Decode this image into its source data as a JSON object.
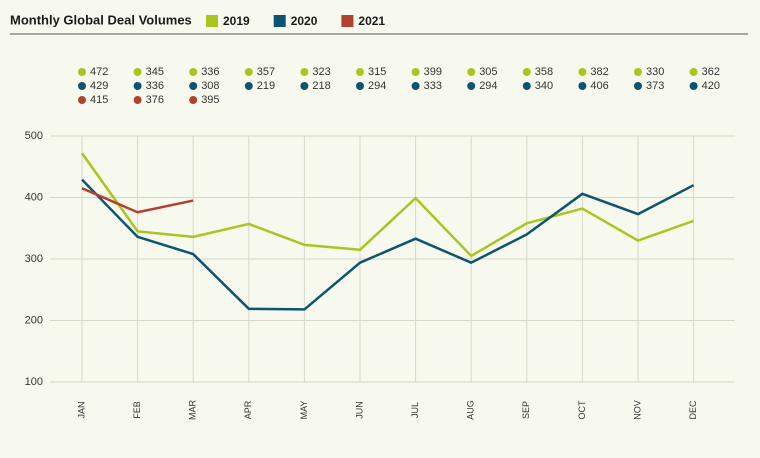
{
  "chart_data": {
    "type": "line",
    "title": "Monthly Global Deal Volumes",
    "categories": [
      "JAN",
      "FEB",
      "MAR",
      "APR",
      "MAY",
      "JUN",
      "JUL",
      "AUG",
      "SEP",
      "OCT",
      "NOV",
      "DEC"
    ],
    "series": [
      {
        "name": "2019",
        "color": "#a8c520",
        "values": [
          472,
          345,
          336,
          357,
          323,
          315,
          399,
          305,
          358,
          382,
          330,
          362
        ]
      },
      {
        "name": "2020",
        "color": "#0d5470",
        "values": [
          429,
          336,
          308,
          219,
          218,
          294,
          333,
          294,
          340,
          406,
          373,
          420
        ]
      },
      {
        "name": "2021",
        "color": "#b3412f",
        "values": [
          415,
          376,
          395,
          null,
          null,
          null,
          null,
          null,
          null,
          null,
          null,
          null
        ]
      }
    ],
    "ylim": [
      100,
      500
    ],
    "yticks": [
      100,
      200,
      300,
      400,
      500
    ],
    "grid": true
  }
}
